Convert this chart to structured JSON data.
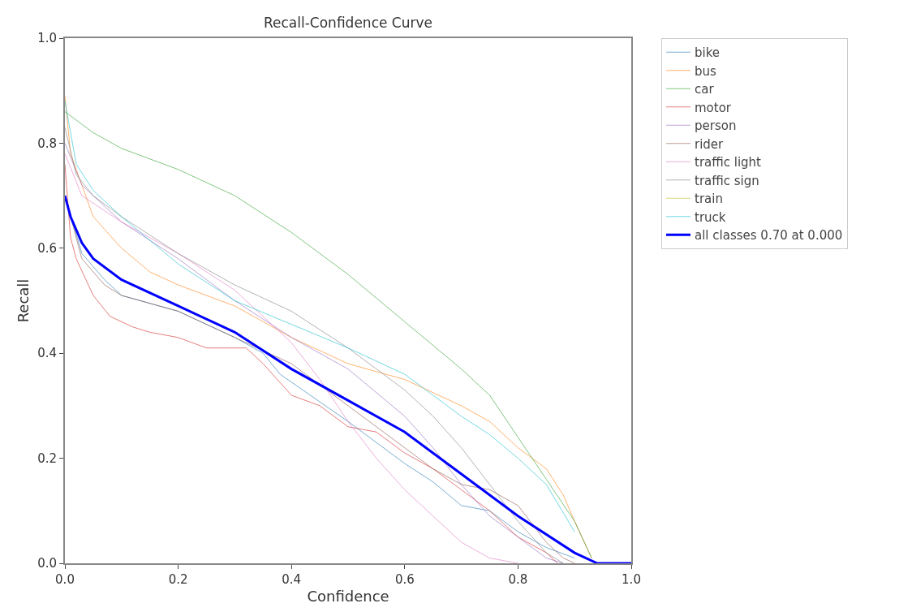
{
  "chart_data": {
    "type": "line",
    "title": "Recall-Confidence Curve",
    "xlabel": "Confidence",
    "ylabel": "Recall",
    "xlim": [
      0,
      1
    ],
    "ylim": [
      0,
      1
    ],
    "xticks": [
      {
        "value": 0,
        "label": "0.0"
      },
      {
        "value": 0.2,
        "label": "0.2"
      },
      {
        "value": 0.4,
        "label": "0.4"
      },
      {
        "value": 0.6,
        "label": "0.6"
      },
      {
        "value": 0.8,
        "label": "0.8"
      },
      {
        "value": 1,
        "label": "1.0"
      }
    ],
    "yticks": [
      {
        "value": 0,
        "label": "0.0"
      },
      {
        "value": 0.2,
        "label": "0.2"
      },
      {
        "value": 0.4,
        "label": "0.4"
      },
      {
        "value": 0.6,
        "label": "0.6"
      },
      {
        "value": 0.8,
        "label": "0.8"
      },
      {
        "value": 1,
        "label": "1.0"
      }
    ],
    "grid": false,
    "legend": "top right",
    "marker": "none",
    "line_style": "solid",
    "series": [
      {
        "name": "bike",
        "color": "#1f77b4",
        "x": [
          0,
          0.03,
          0.07,
          0.1,
          0.2,
          0.3,
          0.35,
          0.38,
          0.42,
          0.5,
          0.6,
          0.65,
          0.7,
          0.75,
          0.8,
          0.85,
          0.9
        ],
        "values": [
          0.7,
          0.59,
          0.54,
          0.51,
          0.48,
          0.43,
          0.4,
          0.36,
          0.33,
          0.27,
          0.19,
          0.155,
          0.11,
          0.1,
          0.06,
          0.03,
          0.01
        ]
      },
      {
        "name": "bus",
        "color": "#ff7f0e",
        "x": [
          0,
          0.01,
          0.03,
          0.05,
          0.1,
          0.15,
          0.2,
          0.3,
          0.4,
          0.5,
          0.6,
          0.7,
          0.75,
          0.8,
          0.85,
          0.88,
          0.9,
          0.93
        ],
        "values": [
          0.89,
          0.78,
          0.72,
          0.66,
          0.6,
          0.555,
          0.53,
          0.49,
          0.43,
          0.38,
          0.35,
          0.3,
          0.27,
          0.22,
          0.18,
          0.13,
          0.08,
          0.01
        ]
      },
      {
        "name": "car",
        "color": "#2ca02c",
        "x": [
          0,
          0.05,
          0.1,
          0.2,
          0.3,
          0.4,
          0.5,
          0.6,
          0.7,
          0.75,
          0.8,
          0.85,
          0.9,
          0.93
        ],
        "values": [
          0.86,
          0.82,
          0.79,
          0.75,
          0.7,
          0.63,
          0.55,
          0.46,
          0.37,
          0.32,
          0.24,
          0.16,
          0.08,
          0.01
        ]
      },
      {
        "name": "motor",
        "color": "#d62728",
        "x": [
          0,
          0.01,
          0.02,
          0.05,
          0.08,
          0.12,
          0.15,
          0.2,
          0.25,
          0.32,
          0.35,
          0.4,
          0.45,
          0.5,
          0.55,
          0.6,
          0.65,
          0.7,
          0.75,
          0.8,
          0.85,
          0.87
        ],
        "values": [
          0.76,
          0.62,
          0.58,
          0.51,
          0.47,
          0.45,
          0.44,
          0.43,
          0.41,
          0.41,
          0.38,
          0.32,
          0.3,
          0.26,
          0.25,
          0.21,
          0.18,
          0.14,
          0.1,
          0.05,
          0.02,
          0
        ]
      },
      {
        "name": "person",
        "color": "#9467bd",
        "x": [
          0,
          0.03,
          0.1,
          0.2,
          0.3,
          0.4,
          0.5,
          0.6,
          0.65,
          0.7,
          0.75,
          0.8,
          0.85,
          0.88
        ],
        "values": [
          0.8,
          0.72,
          0.65,
          0.58,
          0.5,
          0.43,
          0.37,
          0.28,
          0.22,
          0.15,
          0.09,
          0.05,
          0.01,
          0
        ]
      },
      {
        "name": "rider",
        "color": "#8c564b",
        "x": [
          0,
          0.03,
          0.07,
          0.1,
          0.2,
          0.3,
          0.4,
          0.5,
          0.6,
          0.65,
          0.7,
          0.75,
          0.8,
          0.85,
          0.88,
          0.9
        ],
        "values": [
          0.7,
          0.58,
          0.53,
          0.51,
          0.48,
          0.43,
          0.38,
          0.3,
          0.22,
          0.18,
          0.15,
          0.14,
          0.11,
          0.04,
          0.01,
          0
        ]
      },
      {
        "name": "traffic light",
        "color": "#e377c2",
        "x": [
          0,
          0.03,
          0.1,
          0.2,
          0.3,
          0.4,
          0.45,
          0.5,
          0.55,
          0.6,
          0.65,
          0.7,
          0.75,
          0.8
        ],
        "values": [
          0.78,
          0.7,
          0.65,
          0.59,
          0.52,
          0.42,
          0.35,
          0.27,
          0.2,
          0.14,
          0.09,
          0.04,
          0.01,
          0
        ]
      },
      {
        "name": "traffic sign",
        "color": "#7f7f7f",
        "x": [
          0,
          0.02,
          0.05,
          0.1,
          0.2,
          0.3,
          0.4,
          0.5,
          0.6,
          0.65,
          0.7,
          0.75,
          0.8,
          0.85,
          0.88
        ],
        "values": [
          0.83,
          0.74,
          0.7,
          0.66,
          0.59,
          0.53,
          0.48,
          0.41,
          0.33,
          0.28,
          0.22,
          0.15,
          0.08,
          0.02,
          0
        ]
      },
      {
        "name": "train",
        "color": "#bcbd22"
      },
      {
        "name": "truck",
        "color": "#17becf",
        "x": [
          0,
          0.02,
          0.05,
          0.1,
          0.2,
          0.3,
          0.4,
          0.5,
          0.55,
          0.6,
          0.65,
          0.7,
          0.75,
          0.8,
          0.85,
          0.9
        ],
        "values": [
          0.88,
          0.76,
          0.71,
          0.66,
          0.57,
          0.5,
          0.455,
          0.41,
          0.385,
          0.36,
          0.32,
          0.28,
          0.245,
          0.2,
          0.15,
          0.06
        ]
      },
      {
        "name": "all classes 0.70 at 0.000",
        "color": "#0000ff",
        "x": [
          0,
          0.01,
          0.03,
          0.05,
          0.1,
          0.2,
          0.3,
          0.4,
          0.5,
          0.6,
          0.7,
          0.8,
          0.9,
          0.94,
          1
        ],
        "values": [
          0.7,
          0.66,
          0.61,
          0.58,
          0.54,
          0.49,
          0.44,
          0.37,
          0.31,
          0.25,
          0.17,
          0.09,
          0.02,
          0,
          0
        ]
      }
    ]
  }
}
